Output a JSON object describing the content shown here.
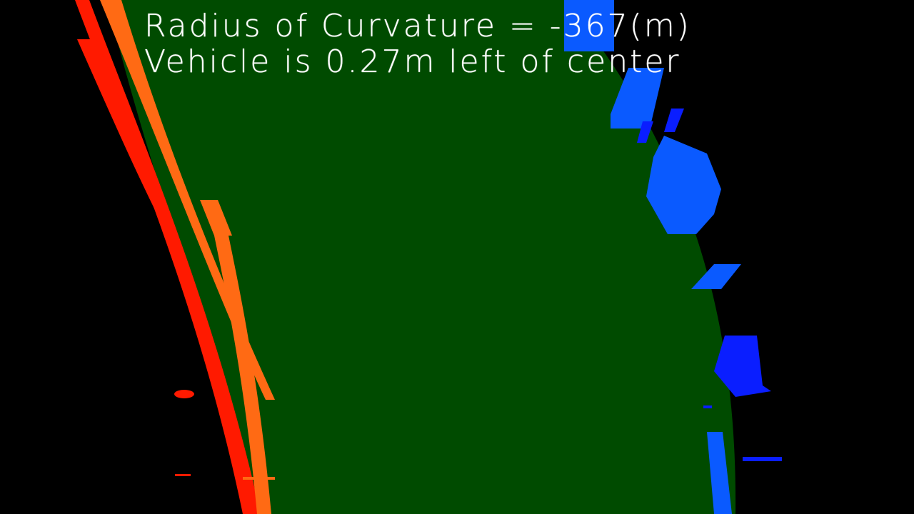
{
  "overlay": {
    "radius_text": "Radius of Curvature = -367(m)",
    "offset_text": "Vehicle is 0.27m left of center"
  },
  "colors": {
    "background": "#000000",
    "lane_fill": "#004b00",
    "left_lane_red": "#ff1a00",
    "left_lane_orange": "#ff6a14",
    "right_lane_blue": "#0a1eff",
    "right_lane_light_blue": "#0a5aff",
    "text": "#ffffff"
  }
}
